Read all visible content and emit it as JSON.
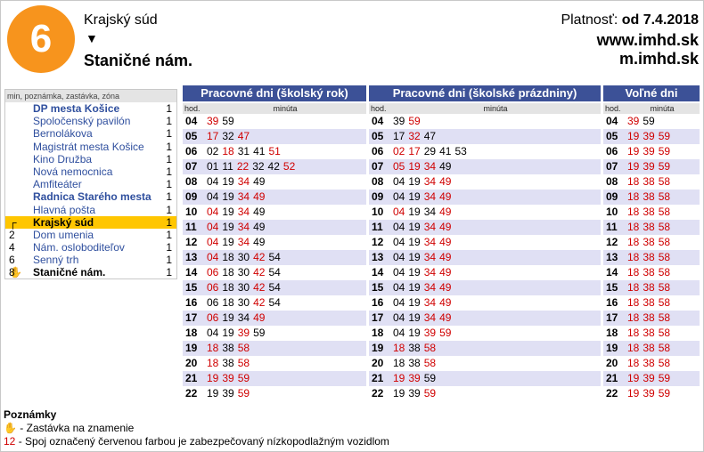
{
  "header": {
    "line": "6",
    "from": "Krajský súd",
    "arrow": "▼",
    "to": "Staničné nám.",
    "valid_label": "Platnosť:",
    "valid_value": "od 7.4.2018",
    "web": "www.imhd.sk",
    "mweb": "m.imhd.sk"
  },
  "stops": {
    "header": "min, poznámka, zastávka, zóna",
    "items": [
      {
        "mark": "",
        "name": "DP mesta Košice",
        "bold": true,
        "zone": "1"
      },
      {
        "mark": "",
        "name": "Spoločenský pavilón",
        "bold": false,
        "zone": "1"
      },
      {
        "mark": "",
        "name": "Bernolákova",
        "bold": false,
        "zone": "1"
      },
      {
        "mark": "",
        "name": "Magistrát mesta Košice",
        "bold": false,
        "zone": "1"
      },
      {
        "mark": "",
        "name": "Kino Družba",
        "bold": false,
        "zone": "1"
      },
      {
        "mark": "",
        "name": "Nová nemocnica",
        "bold": false,
        "zone": "1"
      },
      {
        "mark": "",
        "name": "Amfiteáter",
        "bold": false,
        "zone": "1"
      },
      {
        "mark": "",
        "name": "Radnica Starého mesta",
        "bold": true,
        "zone": "1"
      },
      {
        "mark": "",
        "name": "Hlavná pošta",
        "bold": false,
        "zone": "1"
      },
      {
        "mark": "┌",
        "name": "Krajský súd",
        "bold": true,
        "zone": "1",
        "current": true
      },
      {
        "mark": "2",
        "name": "Dom umenia",
        "bold": false,
        "zone": "1"
      },
      {
        "mark": "4",
        "name": "Nám. osloboditeľov",
        "bold": false,
        "zone": "1"
      },
      {
        "mark": "6 ✋",
        "name": "Senný trh",
        "bold": false,
        "zone": "1"
      },
      {
        "mark": "8",
        "name": "Staničné nám.",
        "bold": true,
        "zone": "1",
        "last": true
      }
    ]
  },
  "tables": [
    {
      "title": "Pracovné dni (školský rok)",
      "hour_label": "hod.",
      "minute_label": "minúta",
      "rows": [
        {
          "h": "04",
          "m": [
            [
              "39",
              1
            ],
            [
              "59",
              0
            ]
          ]
        },
        {
          "h": "05",
          "m": [
            [
              "17",
              1
            ],
            [
              "32",
              0
            ],
            [
              "47",
              1
            ]
          ]
        },
        {
          "h": "06",
          "m": [
            [
              "02",
              0
            ],
            [
              "18",
              1
            ],
            [
              "31",
              0
            ],
            [
              "41",
              0
            ],
            [
              "51",
              1
            ]
          ]
        },
        {
          "h": "07",
          "m": [
            [
              "01",
              0
            ],
            [
              "11",
              0
            ],
            [
              "22",
              1
            ],
            [
              "32",
              0
            ],
            [
              "42",
              0
            ],
            [
              "52",
              1
            ]
          ]
        },
        {
          "h": "08",
          "m": [
            [
              "04",
              0
            ],
            [
              "19",
              0
            ],
            [
              "34",
              1
            ],
            [
              "49",
              0
            ]
          ]
        },
        {
          "h": "09",
          "m": [
            [
              "04",
              0
            ],
            [
              "19",
              0
            ],
            [
              "34",
              1
            ],
            [
              "49",
              1
            ]
          ]
        },
        {
          "h": "10",
          "m": [
            [
              "04",
              1
            ],
            [
              "19",
              0
            ],
            [
              "34",
              1
            ],
            [
              "49",
              0
            ]
          ]
        },
        {
          "h": "11",
          "m": [
            [
              "04",
              1
            ],
            [
              "19",
              0
            ],
            [
              "34",
              1
            ],
            [
              "49",
              0
            ]
          ]
        },
        {
          "h": "12",
          "m": [
            [
              "04",
              1
            ],
            [
              "19",
              0
            ],
            [
              "34",
              1
            ],
            [
              "49",
              0
            ]
          ]
        },
        {
          "h": "13",
          "m": [
            [
              "04",
              1
            ],
            [
              "18",
              0
            ],
            [
              "30",
              0
            ],
            [
              "42",
              1
            ],
            [
              "54",
              0
            ]
          ]
        },
        {
          "h": "14",
          "m": [
            [
              "06",
              1
            ],
            [
              "18",
              0
            ],
            [
              "30",
              0
            ],
            [
              "42",
              1
            ],
            [
              "54",
              0
            ]
          ]
        },
        {
          "h": "15",
          "m": [
            [
              "06",
              1
            ],
            [
              "18",
              0
            ],
            [
              "30",
              0
            ],
            [
              "42",
              1
            ],
            [
              "54",
              0
            ]
          ]
        },
        {
          "h": "16",
          "m": [
            [
              "06",
              0
            ],
            [
              "18",
              0
            ],
            [
              "30",
              0
            ],
            [
              "42",
              1
            ],
            [
              "54",
              0
            ]
          ]
        },
        {
          "h": "17",
          "m": [
            [
              "06",
              1
            ],
            [
              "19",
              0
            ],
            [
              "34",
              0
            ],
            [
              "49",
              1
            ]
          ]
        },
        {
          "h": "18",
          "m": [
            [
              "04",
              0
            ],
            [
              "19",
              0
            ],
            [
              "39",
              1
            ],
            [
              "59",
              0
            ]
          ]
        },
        {
          "h": "19",
          "m": [
            [
              "18",
              1
            ],
            [
              "38",
              0
            ],
            [
              "58",
              1
            ]
          ]
        },
        {
          "h": "20",
          "m": [
            [
              "18",
              1
            ],
            [
              "38",
              0
            ],
            [
              "58",
              1
            ]
          ]
        },
        {
          "h": "21",
          "m": [
            [
              "19",
              1
            ],
            [
              "39",
              1
            ],
            [
              "59",
              1
            ]
          ]
        },
        {
          "h": "22",
          "m": [
            [
              "19",
              0
            ],
            [
              "39",
              0
            ],
            [
              "59",
              1
            ]
          ]
        }
      ]
    },
    {
      "title": "Pracovné dni (školské prázdniny)",
      "hour_label": "hod.",
      "minute_label": "minúta",
      "rows": [
        {
          "h": "04",
          "m": [
            [
              "39",
              0
            ],
            [
              "59",
              1
            ]
          ]
        },
        {
          "h": "05",
          "m": [
            [
              "17",
              0
            ],
            [
              "32",
              1
            ],
            [
              "47",
              0
            ]
          ]
        },
        {
          "h": "06",
          "m": [
            [
              "02",
              1
            ],
            [
              "17",
              1
            ],
            [
              "29",
              0
            ],
            [
              "41",
              0
            ],
            [
              "53",
              0
            ]
          ]
        },
        {
          "h": "07",
          "m": [
            [
              "05",
              1
            ],
            [
              "19",
              1
            ],
            [
              "34",
              1
            ],
            [
              "49",
              0
            ]
          ]
        },
        {
          "h": "08",
          "m": [
            [
              "04",
              0
            ],
            [
              "19",
              0
            ],
            [
              "34",
              1
            ],
            [
              "49",
              1
            ]
          ]
        },
        {
          "h": "09",
          "m": [
            [
              "04",
              0
            ],
            [
              "19",
              0
            ],
            [
              "34",
              1
            ],
            [
              "49",
              1
            ]
          ]
        },
        {
          "h": "10",
          "m": [
            [
              "04",
              1
            ],
            [
              "19",
              0
            ],
            [
              "34",
              0
            ],
            [
              "49",
              1
            ]
          ]
        },
        {
          "h": "11",
          "m": [
            [
              "04",
              0
            ],
            [
              "19",
              0
            ],
            [
              "34",
              1
            ],
            [
              "49",
              1
            ]
          ]
        },
        {
          "h": "12",
          "m": [
            [
              "04",
              0
            ],
            [
              "19",
              0
            ],
            [
              "34",
              1
            ],
            [
              "49",
              1
            ]
          ]
        },
        {
          "h": "13",
          "m": [
            [
              "04",
              0
            ],
            [
              "19",
              0
            ],
            [
              "34",
              1
            ],
            [
              "49",
              1
            ]
          ]
        },
        {
          "h": "14",
          "m": [
            [
              "04",
              0
            ],
            [
              "19",
              0
            ],
            [
              "34",
              1
            ],
            [
              "49",
              1
            ]
          ]
        },
        {
          "h": "15",
          "m": [
            [
              "04",
              0
            ],
            [
              "19",
              0
            ],
            [
              "34",
              1
            ],
            [
              "49",
              1
            ]
          ]
        },
        {
          "h": "16",
          "m": [
            [
              "04",
              0
            ],
            [
              "19",
              0
            ],
            [
              "34",
              1
            ],
            [
              "49",
              1
            ]
          ]
        },
        {
          "h": "17",
          "m": [
            [
              "04",
              0
            ],
            [
              "19",
              0
            ],
            [
              "34",
              1
            ],
            [
              "49",
              1
            ]
          ]
        },
        {
          "h": "18",
          "m": [
            [
              "04",
              0
            ],
            [
              "19",
              0
            ],
            [
              "39",
              1
            ],
            [
              "59",
              1
            ]
          ]
        },
        {
          "h": "19",
          "m": [
            [
              "18",
              1
            ],
            [
              "38",
              0
            ],
            [
              "58",
              1
            ]
          ]
        },
        {
          "h": "20",
          "m": [
            [
              "18",
              0
            ],
            [
              "38",
              0
            ],
            [
              "58",
              1
            ]
          ]
        },
        {
          "h": "21",
          "m": [
            [
              "19",
              1
            ],
            [
              "39",
              1
            ],
            [
              "59",
              0
            ]
          ]
        },
        {
          "h": "22",
          "m": [
            [
              "19",
              0
            ],
            [
              "39",
              0
            ],
            [
              "59",
              1
            ]
          ]
        }
      ]
    },
    {
      "title": "Voľné dni",
      "hour_label": "hod.",
      "minute_label": "minúta",
      "rows": [
        {
          "h": "04",
          "m": [
            [
              "39",
              1
            ],
            [
              "59",
              0
            ]
          ]
        },
        {
          "h": "05",
          "m": [
            [
              "19",
              1
            ],
            [
              "39",
              1
            ],
            [
              "59",
              1
            ]
          ]
        },
        {
          "h": "06",
          "m": [
            [
              "19",
              1
            ],
            [
              "39",
              1
            ],
            [
              "59",
              1
            ]
          ]
        },
        {
          "h": "07",
          "m": [
            [
              "19",
              1
            ],
            [
              "39",
              1
            ],
            [
              "59",
              1
            ]
          ]
        },
        {
          "h": "08",
          "m": [
            [
              "18",
              1
            ],
            [
              "38",
              1
            ],
            [
              "58",
              1
            ]
          ]
        },
        {
          "h": "09",
          "m": [
            [
              "18",
              1
            ],
            [
              "38",
              1
            ],
            [
              "58",
              1
            ]
          ]
        },
        {
          "h": "10",
          "m": [
            [
              "18",
              1
            ],
            [
              "38",
              1
            ],
            [
              "58",
              1
            ]
          ]
        },
        {
          "h": "11",
          "m": [
            [
              "18",
              1
            ],
            [
              "38",
              1
            ],
            [
              "58",
              1
            ]
          ]
        },
        {
          "h": "12",
          "m": [
            [
              "18",
              1
            ],
            [
              "38",
              1
            ],
            [
              "58",
              1
            ]
          ]
        },
        {
          "h": "13",
          "m": [
            [
              "18",
              1
            ],
            [
              "38",
              1
            ],
            [
              "58",
              1
            ]
          ]
        },
        {
          "h": "14",
          "m": [
            [
              "18",
              1
            ],
            [
              "38",
              1
            ],
            [
              "58",
              1
            ]
          ]
        },
        {
          "h": "15",
          "m": [
            [
              "18",
              1
            ],
            [
              "38",
              1
            ],
            [
              "58",
              1
            ]
          ]
        },
        {
          "h": "16",
          "m": [
            [
              "18",
              1
            ],
            [
              "38",
              1
            ],
            [
              "58",
              1
            ]
          ]
        },
        {
          "h": "17",
          "m": [
            [
              "18",
              1
            ],
            [
              "38",
              1
            ],
            [
              "58",
              1
            ]
          ]
        },
        {
          "h": "18",
          "m": [
            [
              "18",
              1
            ],
            [
              "38",
              1
            ],
            [
              "58",
              1
            ]
          ]
        },
        {
          "h": "19",
          "m": [
            [
              "18",
              1
            ],
            [
              "38",
              1
            ],
            [
              "58",
              1
            ]
          ]
        },
        {
          "h": "20",
          "m": [
            [
              "18",
              1
            ],
            [
              "38",
              1
            ],
            [
              "58",
              1
            ]
          ]
        },
        {
          "h": "21",
          "m": [
            [
              "19",
              1
            ],
            [
              "39",
              1
            ],
            [
              "59",
              1
            ]
          ]
        },
        {
          "h": "22",
          "m": [
            [
              "19",
              1
            ],
            [
              "39",
              1
            ],
            [
              "59",
              1
            ]
          ]
        }
      ]
    }
  ],
  "notes": {
    "title": "Poznámky",
    "stop_icon": "✋",
    "stop_text": " - Zastávka na znamenie",
    "lowfloor_num": "12",
    "lowfloor_text": " - Spoj označený červenou farbou je zabezpečovaný nízkopodlažným vozidlom"
  },
  "colors": {
    "accent": "#3c5197",
    "badge": "#f7941d",
    "highlight": "#ffc600",
    "lowfloor": "#d00000"
  }
}
